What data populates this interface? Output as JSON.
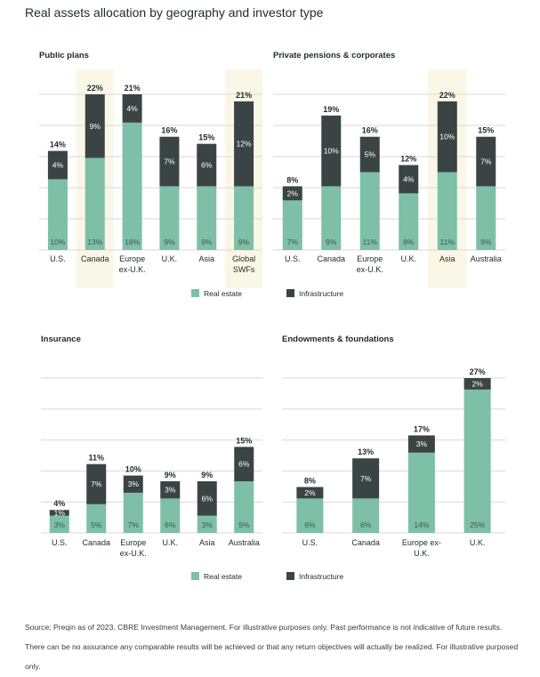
{
  "title": "Real assets allocation by geography and investor type",
  "colors": {
    "real_estate": "#7dbfa7",
    "infrastructure": "#3b4444",
    "highlight": "#fbf7e6",
    "grid": "#d9d9d9",
    "text": "#1f2a2a"
  },
  "chart_data": [
    {
      "type": "bar",
      "stacked": true,
      "title": "Public plans",
      "categories": [
        "U.S.",
        "Canada",
        "Europe ex-U.K.",
        "U.K.",
        "Asia",
        "Global SWFs"
      ],
      "highlighted": [
        "Canada",
        "Global SWFs"
      ],
      "series": [
        {
          "name": "Real estate",
          "values": [
            10,
            13,
            18,
            9,
            9,
            9
          ]
        },
        {
          "name": "Infrastructure",
          "values": [
            4,
            9,
            4,
            7,
            6,
            12
          ]
        }
      ],
      "totals": [
        "14%",
        "22%",
        "21%",
        "16%",
        "15%",
        "21%"
      ],
      "ylim": [
        0,
        22
      ],
      "grid": true,
      "legend": [
        "Real estate",
        "Infrastructure"
      ]
    },
    {
      "type": "bar",
      "stacked": true,
      "title": "Private pensions & corporates",
      "categories": [
        "U.S.",
        "Canada",
        "Europe ex-U.K.",
        "U.K.",
        "Asia",
        "Australia"
      ],
      "highlighted": [
        "Asia"
      ],
      "series": [
        {
          "name": "Real estate",
          "values": [
            7,
            9,
            11,
            8,
            11,
            9
          ]
        },
        {
          "name": "Infrastructure",
          "values": [
            2,
            10,
            5,
            4,
            10,
            7
          ]
        }
      ],
      "totals": [
        "8%",
        "19%",
        "16%",
        "12%",
        "22%",
        "15%"
      ],
      "ylim": [
        0,
        22
      ],
      "grid": true
    },
    {
      "type": "bar",
      "stacked": true,
      "title": "Insurance",
      "categories": [
        "U.S.",
        "Canada",
        "Europe ex-U.K.",
        "U.K.",
        "Asia",
        "Australia"
      ],
      "highlighted": [],
      "series": [
        {
          "name": "Real estate",
          "values": [
            3,
            5,
            7,
            6,
            3,
            9
          ]
        },
        {
          "name": "Infrastructure",
          "values": [
            1,
            7,
            3,
            3,
            6,
            6
          ]
        }
      ],
      "totals": [
        "4%",
        "11%",
        "10%",
        "9%",
        "9%",
        "15%"
      ],
      "ylim": [
        0,
        27
      ],
      "grid": true,
      "legend": [
        "Real estate",
        "Infrastructure"
      ]
    },
    {
      "type": "bar",
      "stacked": true,
      "title": "Endowments & foundations",
      "categories": [
        "U.S.",
        "Canada",
        "Europe ex-U.K.",
        "U.K."
      ],
      "highlighted": [],
      "series": [
        {
          "name": "Real estate",
          "values": [
            6,
            6,
            14,
            25
          ]
        },
        {
          "name": "Infrastructure",
          "values": [
            2,
            7,
            3,
            2
          ]
        }
      ],
      "totals": [
        "8%",
        "13%",
        "17%",
        "27%"
      ],
      "ylim": [
        0,
        27
      ],
      "grid": true
    }
  ],
  "legend": {
    "real_estate": "Real estate",
    "infrastructure": "Infrastructure"
  },
  "source_line1": "Source: Preqin as of 2023. CBRE Investment Management. For illustrative purposes only. Past performance is not indicative of future results.",
  "source_line2": "There can be no assurance any comparable results will be achieved or that any return objectives will actually be realized. For illustrative purposed only."
}
